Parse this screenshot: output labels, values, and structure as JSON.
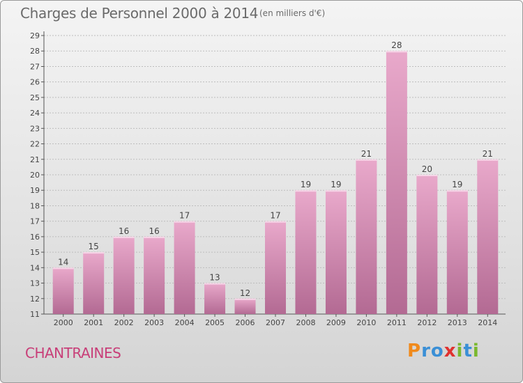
{
  "title": "Charges de Personnel 2000 à 2014",
  "subtitle": "(en milliers d'€)",
  "town": "CHANTRAINES",
  "logo": {
    "letters": [
      "P",
      "r",
      "o",
      "x",
      "i",
      "t",
      "i"
    ],
    "colors": [
      "#f08a1c",
      "#3a8fd6",
      "#3a8fd6",
      "#e0322f",
      "#7ab82e",
      "#3a8fd6",
      "#7ab82e"
    ]
  },
  "colors": {
    "bar": "#d77fae",
    "title": "#6a6a6a",
    "town": "#c83e78"
  },
  "chart_data": {
    "type": "bar",
    "categories": [
      "2000",
      "2001",
      "2002",
      "2003",
      "2004",
      "2005",
      "2006",
      "2007",
      "2008",
      "2009",
      "2010",
      "2011",
      "2012",
      "2013",
      "2014"
    ],
    "values": [
      14,
      15,
      16,
      16,
      17,
      13,
      12,
      17,
      19,
      19,
      21,
      28,
      20,
      19,
      21
    ],
    "ylim": [
      11,
      29
    ],
    "yticks": [
      11,
      12,
      13,
      14,
      15,
      16,
      17,
      18,
      19,
      20,
      21,
      22,
      23,
      24,
      25,
      26,
      27,
      28,
      29
    ],
    "grid": true
  }
}
